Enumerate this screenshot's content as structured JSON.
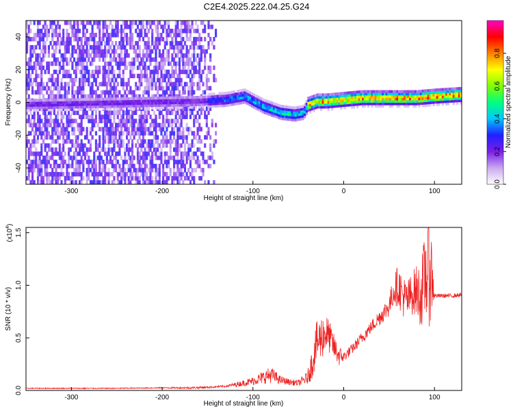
{
  "figure": {
    "title": "C2E4.2025.222.04.25.G24"
  },
  "chart_data": [
    {
      "type": "heatmap",
      "title": "C2E4.2025.222.04.25.G24",
      "xlabel": "Height of straight line (km)",
      "ylabel": "Frequency (Hz)",
      "xlim": [
        -350,
        130
      ],
      "ylim": [
        -50,
        50
      ],
      "xticks": [
        -300,
        -200,
        -100,
        0,
        100
      ],
      "yticks": [
        -40,
        -20,
        0,
        20,
        40
      ],
      "colorbar": {
        "label": "Normalized spectral amplitude",
        "range": [
          0.0,
          1.0
        ],
        "ticks": [
          0.0,
          0.2,
          0.4,
          0.6,
          0.8
        ],
        "tick_labels": [
          "0.0",
          "0.2",
          "0.4",
          "0.6",
          "0.8"
        ],
        "colormap": [
          "#ffffff",
          "#c8a8f0",
          "#7a1ee8",
          "#2020ff",
          "#00c8ff",
          "#00ff80",
          "#80ff00",
          "#ffff00",
          "#ff8000",
          "#ff0000",
          "#ff00c8"
        ]
      },
      "ridge": {
        "x": [
          -350,
          -250,
          -160,
          -130,
          -110,
          -90,
          -70,
          -55,
          -45,
          -40,
          -30,
          -20,
          0,
          20,
          50,
          80,
          100,
          130
        ],
        "y": [
          -2,
          -1,
          0,
          1,
          3,
          -3,
          -7,
          -8,
          -7,
          -2,
          0,
          0,
          1,
          2,
          2,
          2,
          3,
          4
        ]
      },
      "noise_region": {
        "x_from": -350,
        "x_to": -140
      }
    },
    {
      "type": "line",
      "xlabel": "Height of straight line (km)",
      "ylabel": "SNR (10 * v/v)",
      "y_multiplier_label": "(x10^4)",
      "y_multiplier_base": "(x10",
      "y_multiplier_exp": "4",
      "y_multiplier_close": ")",
      "xlim": [
        -350,
        130
      ],
      "ylim": [
        0,
        1.55
      ],
      "xticks": [
        -300,
        -200,
        -100,
        0,
        100
      ],
      "yticks": [
        0.0,
        0.5,
        1.0,
        1.5
      ],
      "ytick_labels": [
        "0.0",
        "0.5",
        "1.0",
        "1.5"
      ],
      "color": "#ee2222",
      "series": [
        {
          "x": [
            -350,
            -300,
            -250,
            -200,
            -170,
            -150,
            -130,
            -110,
            -100,
            -90,
            -80,
            -70,
            -60,
            -50,
            -40,
            -35,
            -30,
            -25,
            -20,
            -15,
            -10,
            -5,
            0,
            10,
            20,
            30,
            40,
            50,
            55,
            60,
            65,
            70,
            75,
            80,
            85,
            90,
            95,
            100,
            110,
            120,
            130
          ],
          "values": [
            0.02,
            0.02,
            0.02,
            0.025,
            0.025,
            0.03,
            0.04,
            0.07,
            0.09,
            0.12,
            0.15,
            0.1,
            0.08,
            0.07,
            0.12,
            0.25,
            0.45,
            0.5,
            0.55,
            0.5,
            0.4,
            0.33,
            0.32,
            0.4,
            0.5,
            0.6,
            0.7,
            0.8,
            0.95,
            1.0,
            0.9,
            0.85,
            0.92,
            0.95,
            0.9,
            1.1,
            1.2,
            0.9,
            0.9,
            0.9,
            0.91
          ],
          "spread": [
            0.005,
            0.005,
            0.005,
            0.005,
            0.01,
            0.01,
            0.01,
            0.03,
            0.04,
            0.06,
            0.08,
            0.04,
            0.03,
            0.03,
            0.06,
            0.15,
            0.2,
            0.22,
            0.2,
            0.15,
            0.12,
            0.1,
            0.05,
            0.05,
            0.06,
            0.06,
            0.08,
            0.1,
            0.15,
            0.2,
            0.2,
            0.2,
            0.2,
            0.25,
            0.3,
            0.45,
            0.6,
            0.02,
            0.02,
            0.02,
            0.02
          ]
        }
      ]
    }
  ]
}
